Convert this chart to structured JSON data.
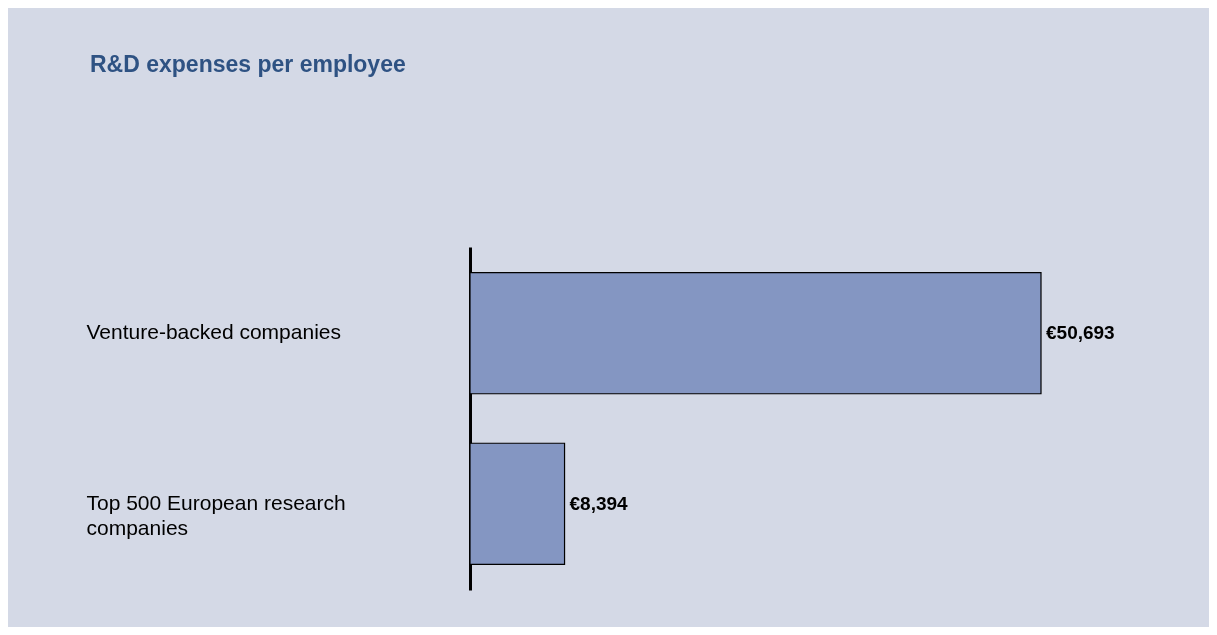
{
  "chart_data": {
    "type": "bar",
    "title": "R&D expenses per employee",
    "orientation": "horizontal",
    "categories": [
      "Venture-backed companies",
      "Top 500 European research companies"
    ],
    "values": [
      50693,
      8394
    ],
    "value_labels": [
      "€50,693",
      "€8,394"
    ],
    "color": "#8496c2"
  }
}
